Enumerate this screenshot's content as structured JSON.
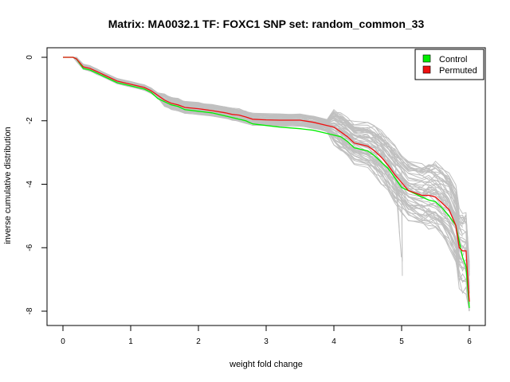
{
  "chart_data": {
    "type": "line",
    "title": "Matrix: MA0032.1 TF: FOXC1 SNP set: random_common_33",
    "xlabel": "weight fold change",
    "ylabel": "inverse cumulative distribution",
    "xlim": [
      0,
      6
    ],
    "ylim": [
      -8,
      0
    ],
    "xticks": [
      "0",
      "1",
      "2",
      "3",
      "4",
      "5",
      "6"
    ],
    "yticks": [
      "0",
      "-2",
      "-4",
      "-6",
      "-8"
    ],
    "grid": false,
    "legend": {
      "position": "top-right",
      "entries": [
        {
          "label": "Control",
          "color": "#00ee00"
        },
        {
          "label": "Permuted",
          "color": "#ee1111"
        }
      ]
    },
    "background_series": {
      "color": "#c0c0c0",
      "description_count": 60
    },
    "series": [
      {
        "name": "Control",
        "color": "#00ee00",
        "x": [
          0.0,
          0.15,
          0.2,
          0.3,
          0.4,
          0.5,
          0.6,
          0.7,
          0.8,
          1.0,
          1.2,
          1.3,
          1.4,
          1.5,
          1.6,
          1.7,
          1.8,
          2.0,
          2.2,
          2.4,
          2.5,
          2.6,
          2.7,
          2.8,
          3.0,
          3.2,
          3.5,
          3.7,
          3.9,
          4.0,
          4.1,
          4.2,
          4.3,
          4.5,
          4.6,
          4.7,
          4.8,
          4.9,
          5.0,
          5.1,
          5.3,
          5.4,
          5.5,
          5.6,
          5.7,
          5.8,
          5.85,
          5.9,
          5.95,
          6.0
        ],
        "y": [
          0.0,
          0.0,
          -0.05,
          -0.35,
          -0.4,
          -0.5,
          -0.6,
          -0.7,
          -0.8,
          -0.9,
          -1.0,
          -1.1,
          -1.3,
          -1.4,
          -1.5,
          -1.55,
          -1.65,
          -1.7,
          -1.75,
          -1.85,
          -1.9,
          -1.95,
          -2.0,
          -2.1,
          -2.15,
          -2.2,
          -2.25,
          -2.3,
          -2.4,
          -2.45,
          -2.5,
          -2.65,
          -2.85,
          -2.95,
          -3.1,
          -3.3,
          -3.5,
          -3.8,
          -4.1,
          -4.2,
          -4.4,
          -4.5,
          -4.55,
          -4.75,
          -5.0,
          -5.3,
          -5.8,
          -6.3,
          -6.6,
          -7.9
        ]
      },
      {
        "name": "Permuted",
        "color": "#ee1111",
        "x": [
          0.0,
          0.15,
          0.2,
          0.3,
          0.4,
          0.5,
          0.6,
          0.7,
          0.8,
          1.0,
          1.2,
          1.3,
          1.4,
          1.5,
          1.6,
          1.7,
          1.8,
          2.0,
          2.2,
          2.4,
          2.5,
          2.6,
          2.7,
          2.8,
          3.0,
          3.2,
          3.5,
          3.7,
          3.9,
          4.0,
          4.1,
          4.2,
          4.3,
          4.5,
          4.6,
          4.7,
          4.8,
          4.9,
          5.0,
          5.1,
          5.3,
          5.4,
          5.5,
          5.6,
          5.7,
          5.8,
          5.85,
          5.9,
          5.95,
          6.0
        ],
        "y": [
          0.0,
          0.0,
          -0.05,
          -0.3,
          -0.35,
          -0.45,
          -0.55,
          -0.65,
          -0.75,
          -0.85,
          -0.95,
          -1.05,
          -1.2,
          -1.35,
          -1.45,
          -1.5,
          -1.58,
          -1.62,
          -1.68,
          -1.75,
          -1.8,
          -1.82,
          -1.88,
          -1.95,
          -1.97,
          -1.98,
          -1.98,
          -2.05,
          -2.15,
          -2.2,
          -2.35,
          -2.5,
          -2.7,
          -2.8,
          -2.95,
          -3.15,
          -3.4,
          -3.7,
          -3.95,
          -4.2,
          -4.35,
          -4.35,
          -4.4,
          -4.6,
          -4.8,
          -5.3,
          -6.0,
          -6.1,
          -6.1,
          -7.7
        ]
      }
    ]
  }
}
